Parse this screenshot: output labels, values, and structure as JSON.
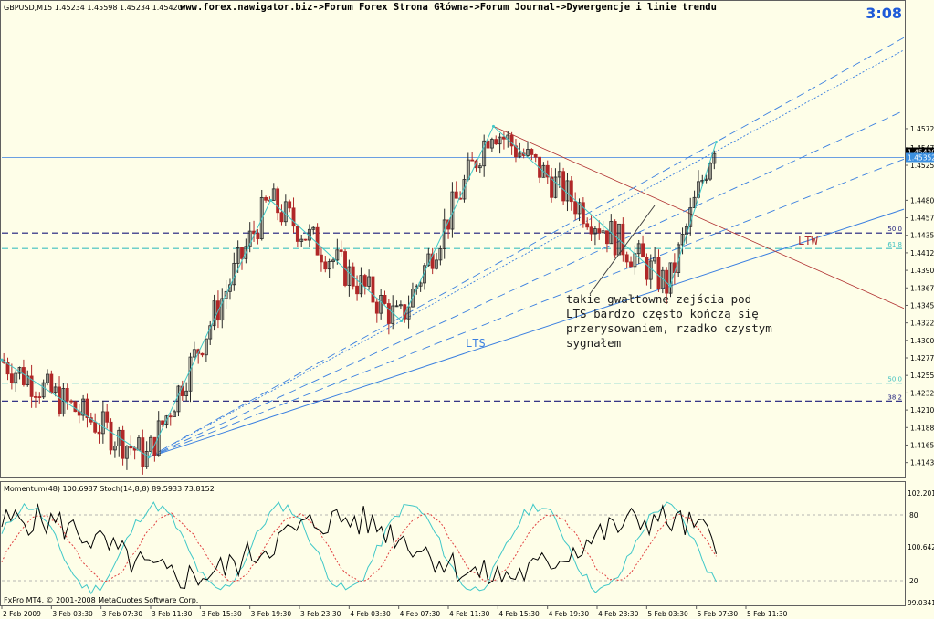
{
  "header": {
    "symbol_info": "GBPUSD,M15  1.45234 1.45598 1.45234 1.45420",
    "breadcrumb": "www.forex.nawigator.biz->Forum Forex Strona Główna->Forum Journal->Dywergencje i linie trendu",
    "timer": "3:08"
  },
  "chart_data": [
    {
      "type": "candlestick",
      "symbol": "GBPUSD",
      "timeframe": "M15",
      "ylim": [
        1.4125,
        1.4735
      ],
      "price_ticks": [
        "1.45720",
        "1.45475",
        "1.45250",
        "1.44800",
        "1.44575",
        "1.44350",
        "1.44125",
        "1.43900",
        "1.43675",
        "1.43450",
        "1.43225",
        "1.43000",
        "1.42775",
        "1.42550",
        "1.42325",
        "1.42105",
        "1.41880",
        "1.41655",
        "1.41430"
      ],
      "price_markers": [
        {
          "label": "1.45420",
          "value": 1.4542
        },
        {
          "label": "1.45352",
          "value": 1.4535
        }
      ],
      "time_ticks": [
        "2 Feb 2009",
        "3 Feb 03:30",
        "3 Feb 07:30",
        "3 Feb 11:30",
        "3 Feb 15:30",
        "3 Feb 19:30",
        "3 Feb 23:30",
        "4 Feb 03:30",
        "4 Feb 07:30",
        "4 Feb 11:30",
        "4 Feb 15:30",
        "4 Feb 19:30",
        "4 Feb 23:30",
        "5 Feb 03:30",
        "5 Feb 07:30",
        "5 Feb 11:30"
      ],
      "zigzag_swings": [
        {
          "time_frac": 0.0,
          "price": 1.4275
        },
        {
          "time_frac": 0.163,
          "price": 1.415
        },
        {
          "time_frac": 0.298,
          "price": 1.448
        },
        {
          "time_frac": 0.443,
          "price": 1.4325
        },
        {
          "time_frac": 0.545,
          "price": 1.4575
        },
        {
          "time_frac": 0.741,
          "price": 1.437
        },
        {
          "time_frac": 0.792,
          "price": 1.4555
        }
      ],
      "fib_levels": [
        {
          "label": "50.0",
          "price": 1.4438,
          "color": "#1a1a7a",
          "style": "dashed"
        },
        {
          "label": "61.8",
          "price": 1.4418,
          "color": "#40c0c0",
          "style": "dashed"
        },
        {
          "label": "50.0",
          "price": 1.4245,
          "color": "#40c0c0",
          "style": "dashed"
        },
        {
          "label": "38.2",
          "price": 1.4222,
          "color": "#1a1a7a",
          "style": "dashed"
        }
      ],
      "trendlines": [
        {
          "label": "LTS",
          "color": "#3a7fe0"
        },
        {
          "label": "LTW",
          "color": "#b03030"
        }
      ],
      "annotation": {
        "lines": [
          "takie gwałtowne zejścia pod",
          "LTS bardzo często kończą się",
          "przerysowaniem, rzadko czystym",
          "sygnałem"
        ]
      }
    },
    {
      "type": "line",
      "indicator_title": "Momentum(48) 100.6987  Stoch(14,8,8) 89.5933 73.8152",
      "ylim": [
        99.03,
        102.2013
      ],
      "ticks_left": [
        "102.2013",
        "100.6421",
        "99.0341"
      ],
      "ticks_right": [
        "80",
        "20"
      ]
    }
  ],
  "footer": {
    "copyright": "FxPro MT4, © 2001-2008 MetaQuotes Software Corp."
  },
  "colors": {
    "background": "#fefee8",
    "bull_candle": "#2a2a2a",
    "bear_candle": "#b02828",
    "momentum": "#000000",
    "stoch_main": "#40c8c8",
    "stoch_signal": "#e04040",
    "level_line": "#5080c0"
  }
}
